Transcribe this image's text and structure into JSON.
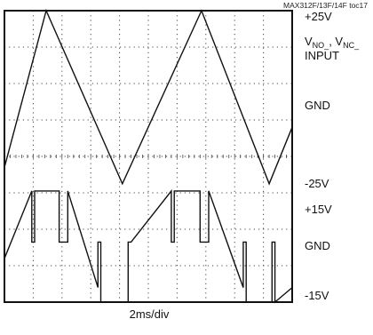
{
  "figure_id": "MAX312F/13F/14F toc17",
  "chart_data": {
    "type": "line",
    "title": "",
    "xlabel": "2ms/div",
    "x_divisions": 10,
    "y_divisions": 8,
    "grid": true,
    "series": [
      {
        "role": "top trace (triangle input)",
        "x_div": [
          0,
          1.45,
          4.1,
          6.85,
          9.2,
          10
        ],
        "y_div": [
          3.7,
          8.0,
          3.25,
          8.0,
          3.25,
          4.8
        ]
      },
      {
        "role": "bottom trace (switch output)",
        "x_div": [
          0,
          0.95,
          0.95,
          1.05,
          1.05,
          1.9,
          1.9,
          2.2,
          2.2,
          3.25,
          3.25,
          3.35,
          3.35,
          4.3,
          4.3,
          4.4,
          4.4,
          5.8,
          5.8,
          5.9,
          5.9,
          6.8,
          6.8,
          7.1,
          7.1,
          8.3,
          8.3,
          8.4,
          8.4,
          9.3,
          9.3,
          9.4,
          9.4,
          10
        ],
        "y_div": [
          1.2,
          3.05,
          1.65,
          1.65,
          3.05,
          3.05,
          1.65,
          1.65,
          3.05,
          0.4,
          1.65,
          1.65,
          0.0,
          0.0,
          1.65,
          1.65,
          1.65,
          3.05,
          1.65,
          1.65,
          3.05,
          3.05,
          1.65,
          1.65,
          3.05,
          0.4,
          1.65,
          1.65,
          0.0,
          0.0,
          1.65,
          1.65,
          0.0,
          0.4
        ]
      }
    ],
    "labels": {
      "top_plus": "+25V",
      "vno": "V",
      "vno_sub": "NO_",
      "vnc": ", V",
      "vnc_sub": "NC_",
      "input": "INPUT",
      "gnd_top": "GND",
      "top_minus": "-25V",
      "bot_plus": "+15V",
      "gnd_bot": "GND",
      "bot_minus": "-15V"
    }
  },
  "colors": {
    "trace": "#111111",
    "grid": "#444444",
    "frame": "#111111"
  }
}
